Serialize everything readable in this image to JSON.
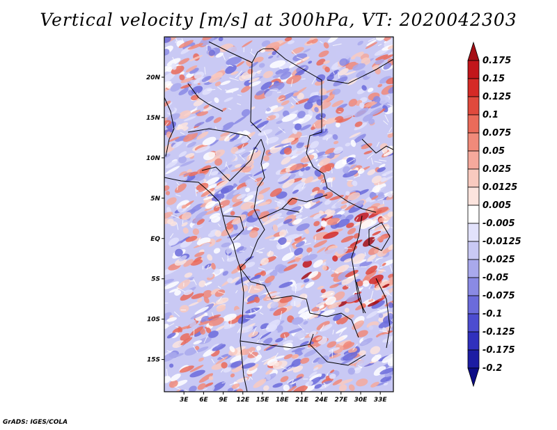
{
  "title": "Vertical velocity [m/s] at 300hPa, VT: 2020042303",
  "credit": "GrADS: IGES/COLA",
  "map": {
    "lat_range": [
      -19,
      25
    ],
    "lon_range": [
      0,
      35
    ],
    "lat_ticks": [
      "20N",
      "15N",
      "10N",
      "5N",
      "EQ",
      "5S",
      "10S",
      "15S"
    ],
    "lat_tick_values": [
      20,
      15,
      10,
      5,
      0,
      -5,
      -10,
      -15
    ],
    "lon_ticks": [
      "3E",
      "6E",
      "9E",
      "12E",
      "15E",
      "18E",
      "21E",
      "24E",
      "27E",
      "30E",
      "33E"
    ],
    "lon_tick_values": [
      3,
      6,
      9,
      12,
      15,
      18,
      21,
      24,
      27,
      30,
      33
    ]
  },
  "colorbar": {
    "labels": [
      "0.175",
      "0.15",
      "0.125",
      "0.1",
      "0.075",
      "0.05",
      "0.025",
      "0.0125",
      "0.005",
      "-0.005",
      "-0.0125",
      "-0.025",
      "-0.05",
      "-0.075",
      "-0.1",
      "-0.125",
      "-0.175",
      "-0.2"
    ],
    "colors": [
      "#a50f15",
      "#c2161b",
      "#d52a26",
      "#e04a3d",
      "#ea6b5a",
      "#f08a7a",
      "#f5a99c",
      "#f9cabf",
      "#fce4de",
      "#ffffff",
      "#e2e2fb",
      "#c9c9f4",
      "#a9a9ec",
      "#8a8ae4",
      "#6b6bdb",
      "#4c4cd0",
      "#3030bd",
      "#1c1ca3",
      "#0c0c86"
    ]
  }
}
